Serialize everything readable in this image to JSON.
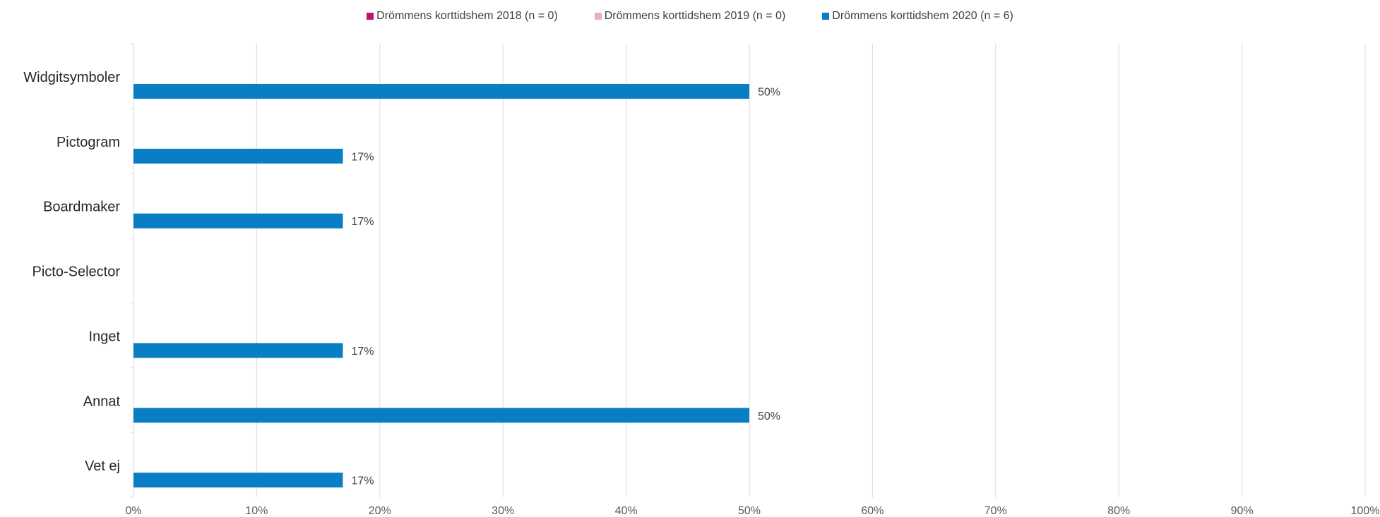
{
  "chart_data": {
    "type": "bar",
    "orientation": "horizontal",
    "title": "",
    "xlabel": "",
    "ylabel": "",
    "categories": [
      "Widgitsymboler",
      "Pictogram",
      "Boardmaker",
      "Picto-Selector",
      "Inget",
      "Annat",
      "Vet ej"
    ],
    "series": [
      {
        "name": "Drömmens korttidshem 2018 (n = 0)",
        "color": "#c0146c",
        "values": [
          null,
          null,
          null,
          null,
          null,
          null,
          null
        ]
      },
      {
        "name": "Drömmens korttidshem 2019 (n = 0)",
        "color": "#e9aec4",
        "values": [
          null,
          null,
          null,
          null,
          null,
          null,
          null
        ]
      },
      {
        "name": "Drömmens korttidshem 2020 (n = 6)",
        "color": "#0a7ec2",
        "values": [
          50,
          17,
          17,
          null,
          17,
          50,
          17
        ]
      }
    ],
    "data_labels": [
      "50%",
      "17%",
      "17%",
      "",
      "17%",
      "50%",
      "17%"
    ],
    "xlim": [
      0,
      100
    ],
    "xticks": [
      0,
      10,
      20,
      30,
      40,
      50,
      60,
      70,
      80,
      90,
      100
    ],
    "xtick_labels": [
      "0%",
      "10%",
      "20%",
      "30%",
      "40%",
      "50%",
      "60%",
      "70%",
      "80%",
      "90%",
      "100%"
    ],
    "grid": true,
    "legend_position": "top"
  }
}
